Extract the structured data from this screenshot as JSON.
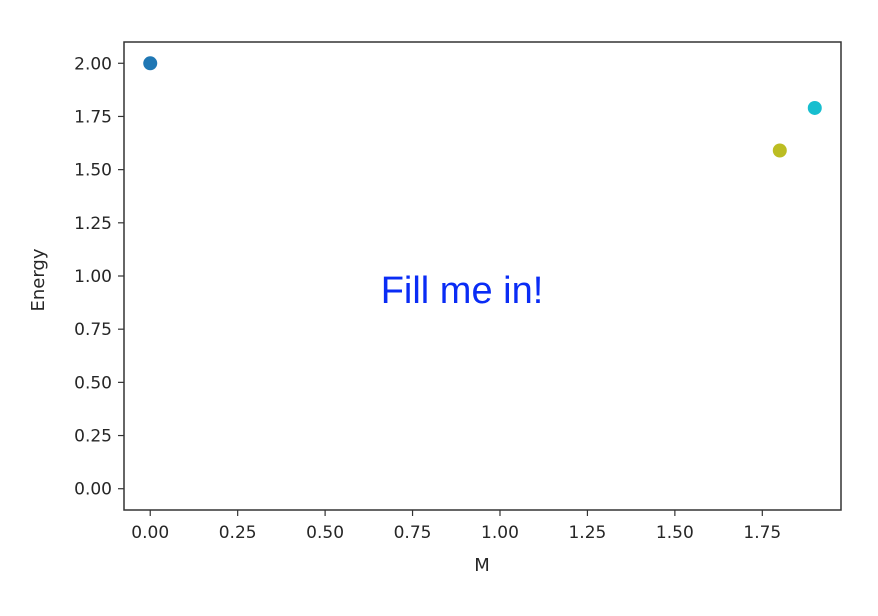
{
  "chart_data": {
    "type": "scatter",
    "xlabel": "M",
    "ylabel": "Energy",
    "xlim": [
      -0.075,
      1.975
    ],
    "ylim": [
      -0.1,
      2.1
    ],
    "xticks": [
      "0.00",
      "0.25",
      "0.50",
      "0.75",
      "1.00",
      "1.25",
      "1.50",
      "1.75"
    ],
    "yticks": [
      "0.00",
      "0.25",
      "0.50",
      "0.75",
      "1.00",
      "1.25",
      "1.50",
      "1.75",
      "2.00"
    ],
    "grid": false,
    "points": [
      {
        "x": 0.0,
        "y": 2.0,
        "color": "#1f77b4"
      },
      {
        "x": 1.8,
        "y": 1.59,
        "color": "#bcbd22"
      },
      {
        "x": 1.9,
        "y": 1.79,
        "color": "#17becf"
      }
    ],
    "annotation": "Fill me in!"
  }
}
